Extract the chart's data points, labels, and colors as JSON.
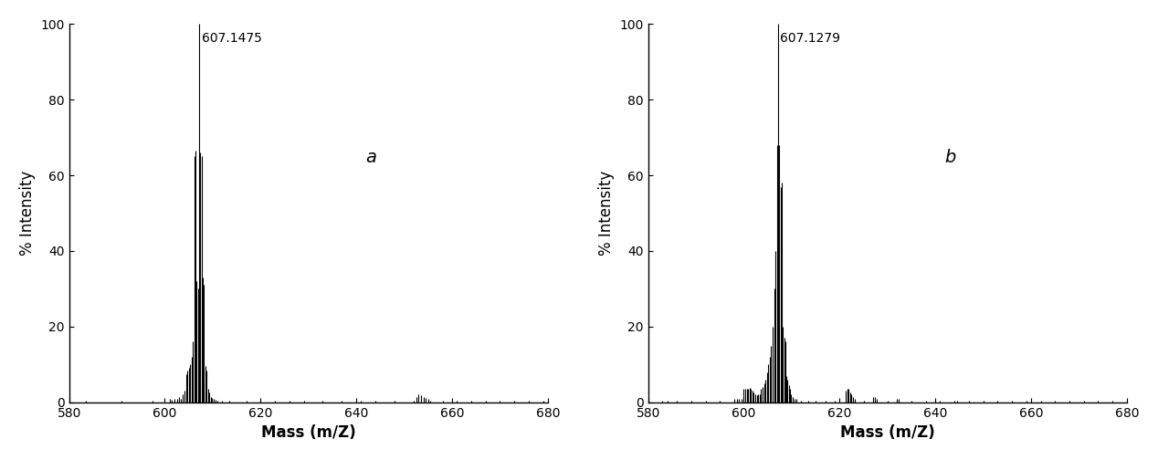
{
  "panel_a": {
    "label": "a",
    "peak_label": "607.1475",
    "peak_x": 607.1475,
    "xlim": [
      580,
      680
    ],
    "ylim": [
      0,
      100
    ],
    "xticks": [
      580,
      600,
      620,
      640,
      660,
      680
    ],
    "yticks": [
      0,
      20,
      40,
      60,
      80,
      100
    ],
    "xlabel": "Mass (m/Z)",
    "ylabel": "% Intensity",
    "bars": [
      [
        583.5,
        0.5
      ],
      [
        591.0,
        0.5
      ],
      [
        597.5,
        0.5
      ],
      [
        601.0,
        0.8
      ],
      [
        601.5,
        0.6
      ],
      [
        602.0,
        1.0
      ],
      [
        602.5,
        0.8
      ],
      [
        603.0,
        1.5
      ],
      [
        603.4,
        1.0
      ],
      [
        603.8,
        2.0
      ],
      [
        604.1,
        3.0
      ],
      [
        604.4,
        7.5
      ],
      [
        604.7,
        8.5
      ],
      [
        605.0,
        9.0
      ],
      [
        605.3,
        10.0
      ],
      [
        605.6,
        12.0
      ],
      [
        605.9,
        16.0
      ],
      [
        606.15,
        65.0
      ],
      [
        606.4,
        66.5
      ],
      [
        606.65,
        32.0
      ],
      [
        606.9,
        30.0
      ],
      [
        607.15,
        100.0
      ],
      [
        607.4,
        66.0
      ],
      [
        607.65,
        65.0
      ],
      [
        607.9,
        33.0
      ],
      [
        608.15,
        31.0
      ],
      [
        608.4,
        9.5
      ],
      [
        608.65,
        8.5
      ],
      [
        609.0,
        3.5
      ],
      [
        609.3,
        2.5
      ],
      [
        609.6,
        1.5
      ],
      [
        609.9,
        1.2
      ],
      [
        610.2,
        0.8
      ],
      [
        610.6,
        0.7
      ],
      [
        611.0,
        0.5
      ],
      [
        612.0,
        0.5
      ],
      [
        613.5,
        0.5
      ],
      [
        617.0,
        0.5
      ],
      [
        620.0,
        0.5
      ],
      [
        623.0,
        0.5
      ],
      [
        626.0,
        0.5
      ],
      [
        629.0,
        0.5
      ],
      [
        633.0,
        0.5
      ],
      [
        637.0,
        0.5
      ],
      [
        641.0,
        0.5
      ],
      [
        644.0,
        0.5
      ],
      [
        648.0,
        0.5
      ],
      [
        652.0,
        0.5
      ],
      [
        652.5,
        1.5
      ],
      [
        653.0,
        2.0
      ],
      [
        653.5,
        1.8
      ],
      [
        654.0,
        1.5
      ],
      [
        654.5,
        1.2
      ],
      [
        655.0,
        0.8
      ],
      [
        655.5,
        0.5
      ],
      [
        658.0,
        0.5
      ],
      [
        661.0,
        0.5
      ],
      [
        664.0,
        0.5
      ],
      [
        667.0,
        0.5
      ],
      [
        670.0,
        0.5
      ],
      [
        673.0,
        0.5
      ],
      [
        676.0,
        0.5
      ],
      [
        679.0,
        0.5
      ]
    ]
  },
  "panel_b": {
    "label": "b",
    "peak_label": "607.1279",
    "peak_x": 607.1279,
    "xlim": [
      580,
      680
    ],
    "ylim": [
      0,
      100
    ],
    "xticks": [
      580,
      600,
      620,
      640,
      660,
      680
    ],
    "yticks": [
      0,
      20,
      40,
      60,
      80,
      100
    ],
    "xlabel": "Mass (m/Z)",
    "ylabel": "% Intensity",
    "bars": [
      [
        583.0,
        0.5
      ],
      [
        584.0,
        0.5
      ],
      [
        586.0,
        0.5
      ],
      [
        589.0,
        0.5
      ],
      [
        592.0,
        0.5
      ],
      [
        595.0,
        0.5
      ],
      [
        598.0,
        0.8
      ],
      [
        598.5,
        0.8
      ],
      [
        599.0,
        1.0
      ],
      [
        599.5,
        1.0
      ],
      [
        600.0,
        3.5
      ],
      [
        600.3,
        3.5
      ],
      [
        600.6,
        3.5
      ],
      [
        600.9,
        3.5
      ],
      [
        601.2,
        3.8
      ],
      [
        601.5,
        3.5
      ],
      [
        601.8,
        3.0
      ],
      [
        602.1,
        2.5
      ],
      [
        602.4,
        2.0
      ],
      [
        602.7,
        1.8
      ],
      [
        603.0,
        2.0
      ],
      [
        603.3,
        2.0
      ],
      [
        603.6,
        3.5
      ],
      [
        603.9,
        4.0
      ],
      [
        604.2,
        5.0
      ],
      [
        604.5,
        6.0
      ],
      [
        604.8,
        8.0
      ],
      [
        605.1,
        10.0
      ],
      [
        605.4,
        12.0
      ],
      [
        605.7,
        15.0
      ],
      [
        606.0,
        20.0
      ],
      [
        606.3,
        30.0
      ],
      [
        606.6,
        40.0
      ],
      [
        606.9,
        68.0
      ],
      [
        607.13,
        100.0
      ],
      [
        607.4,
        68.0
      ],
      [
        607.65,
        57.0
      ],
      [
        607.9,
        58.0
      ],
      [
        608.15,
        20.0
      ],
      [
        608.4,
        17.0
      ],
      [
        608.65,
        16.0
      ],
      [
        608.9,
        7.0
      ],
      [
        609.15,
        6.0
      ],
      [
        609.4,
        4.5
      ],
      [
        609.65,
        3.5
      ],
      [
        609.9,
        2.0
      ],
      [
        610.15,
        1.5
      ],
      [
        610.5,
        1.0
      ],
      [
        611.0,
        0.8
      ],
      [
        612.0,
        0.5
      ],
      [
        613.5,
        0.5
      ],
      [
        615.0,
        0.5
      ],
      [
        617.0,
        0.5
      ],
      [
        619.0,
        0.5
      ],
      [
        621.3,
        3.0
      ],
      [
        621.6,
        3.5
      ],
      [
        621.9,
        3.5
      ],
      [
        622.2,
        2.5
      ],
      [
        622.5,
        2.0
      ],
      [
        622.8,
        1.5
      ],
      [
        623.1,
        1.0
      ],
      [
        625.0,
        0.5
      ],
      [
        627.0,
        1.5
      ],
      [
        627.4,
        1.5
      ],
      [
        627.8,
        1.0
      ],
      [
        630.0,
        0.5
      ],
      [
        632.0,
        1.0
      ],
      [
        632.4,
        0.8
      ],
      [
        635.0,
        0.5
      ],
      [
        638.0,
        0.5
      ],
      [
        641.0,
        0.5
      ],
      [
        644.0,
        0.5
      ],
      [
        644.5,
        0.5
      ],
      [
        647.0,
        0.5
      ],
      [
        650.0,
        0.5
      ],
      [
        653.0,
        0.5
      ],
      [
        656.0,
        0.5
      ],
      [
        659.0,
        0.5
      ],
      [
        662.0,
        0.5
      ],
      [
        665.0,
        0.5
      ],
      [
        668.0,
        0.5
      ],
      [
        671.0,
        0.5
      ],
      [
        674.0,
        0.5
      ],
      [
        677.0,
        0.5
      ],
      [
        680.0,
        0.5
      ]
    ]
  },
  "bar_color": "#000000",
  "bar_width": 0.18,
  "label_fontsize": 12,
  "tick_fontsize": 10,
  "annot_fontsize": 10,
  "panel_label_fontsize": 14
}
